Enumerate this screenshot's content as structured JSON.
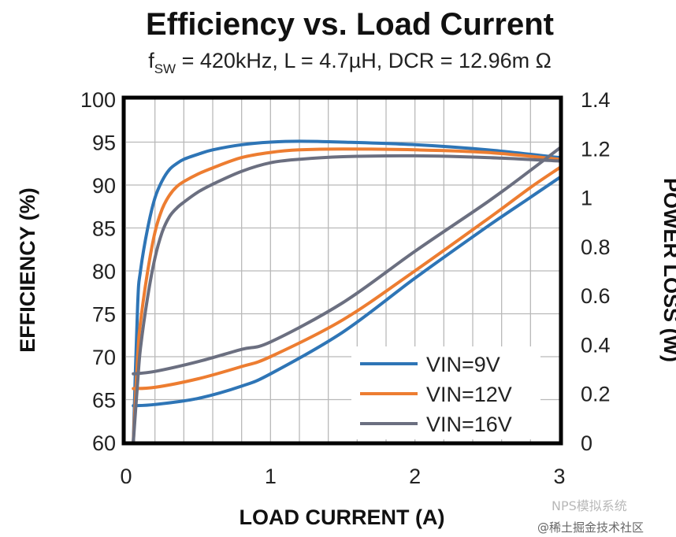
{
  "chart_data": {
    "type": "line",
    "title": "Efficiency vs. Load Current",
    "subtitle": {
      "prefix": "f",
      "subscript": "SW",
      "rest": " = 420kHz, L = 4.7µH, DCR = 12.96m Ω"
    },
    "xlabel": "LOAD CURRENT (A)",
    "ylabel_left": "EFFICIENCY (%)",
    "ylabel_right": "POWER LOSS (W)",
    "xlim": [
      0,
      3
    ],
    "ylim_left": [
      60,
      100
    ],
    "ylim_right": [
      0,
      1.4
    ],
    "x_ticks": [
      "0",
      "1",
      "2",
      "3"
    ],
    "y_left_ticks": [
      "100",
      "95",
      "90",
      "85",
      "80",
      "75",
      "70",
      "65",
      "60"
    ],
    "y_right_ticks": [
      "1.4",
      "1.2",
      "1",
      "0.8",
      "0.6",
      "0.4",
      "0.2",
      "0"
    ],
    "grid": true,
    "legend_position": "bottom-right",
    "series": [
      {
        "name": "VIN=9V",
        "color": "#2e75b6",
        "efficiency": {
          "x": [
            0.05,
            0.08,
            0.1,
            0.15,
            0.2,
            0.25,
            0.3,
            0.35,
            0.4,
            0.5,
            0.6,
            0.8,
            1.0,
            1.2,
            1.5,
            2.0,
            2.5,
            3.0
          ],
          "y": [
            60,
            76,
            80,
            85,
            88.5,
            90.5,
            91.8,
            92.5,
            93.0,
            93.6,
            94.1,
            94.7,
            95.0,
            95.1,
            95.0,
            94.7,
            94.1,
            93.2
          ]
        },
        "power_loss": {
          "x": [
            0.05,
            0.2,
            0.5,
            0.8,
            1.0,
            1.5,
            2.0,
            2.5,
            2.8,
            3.0
          ],
          "y": [
            0.15,
            0.155,
            0.18,
            0.23,
            0.28,
            0.45,
            0.67,
            0.88,
            1.0,
            1.08
          ]
        }
      },
      {
        "name": "VIN=12V",
        "color": "#ed7d31",
        "efficiency": {
          "x": [
            0.05,
            0.08,
            0.1,
            0.15,
            0.2,
            0.25,
            0.3,
            0.35,
            0.4,
            0.5,
            0.6,
            0.8,
            1.0,
            1.2,
            1.5,
            2.0,
            2.5,
            3.0
          ],
          "y": [
            60,
            70,
            74,
            80,
            84.5,
            87.2,
            88.8,
            89.8,
            90.4,
            91.3,
            92.0,
            93.2,
            93.8,
            94.1,
            94.2,
            94.1,
            93.8,
            93.0
          ]
        },
        "power_loss": {
          "x": [
            0.05,
            0.2,
            0.5,
            0.8,
            1.0,
            1.5,
            2.0,
            2.5,
            2.8,
            3.0
          ],
          "y": [
            0.22,
            0.225,
            0.26,
            0.31,
            0.35,
            0.5,
            0.7,
            0.91,
            1.04,
            1.12
          ]
        }
      },
      {
        "name": "VIN=16V",
        "color": "#6b6f80",
        "efficiency": {
          "x": [
            0.05,
            0.08,
            0.1,
            0.15,
            0.2,
            0.25,
            0.3,
            0.35,
            0.4,
            0.5,
            0.6,
            0.8,
            1.0,
            1.2,
            1.5,
            2.0,
            2.5,
            3.0
          ],
          "y": [
            60,
            67,
            71,
            77,
            81.5,
            84.5,
            86.3,
            87.3,
            88.0,
            89.2,
            90.1,
            91.6,
            92.6,
            93.0,
            93.3,
            93.4,
            93.2,
            92.8
          ]
        },
        "power_loss": {
          "x": [
            0.05,
            0.2,
            0.5,
            0.8,
            1.0,
            1.5,
            2.0,
            2.5,
            2.8,
            3.0
          ],
          "y": [
            0.28,
            0.29,
            0.33,
            0.38,
            0.41,
            0.57,
            0.78,
            0.98,
            1.11,
            1.2
          ]
        }
      }
    ]
  },
  "watermark": {
    "line1": "NPS模拟系统",
    "line2": "@稀土掘金技术社区"
  }
}
